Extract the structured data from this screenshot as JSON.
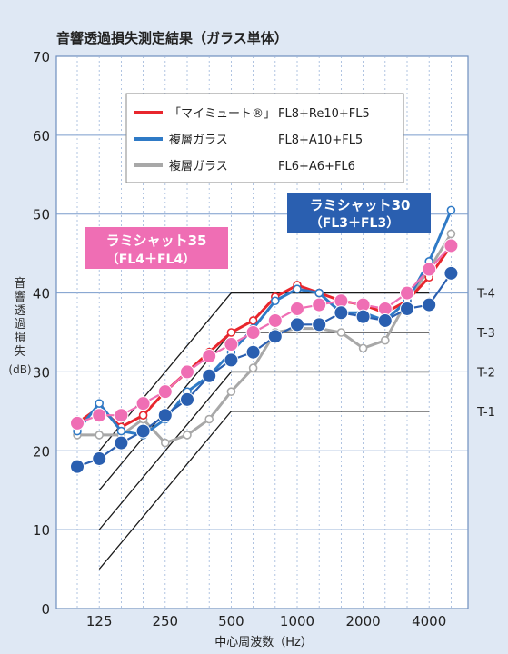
{
  "chart_data": {
    "type": "line",
    "title": "音響透過損失測定結果（ガラス単体）",
    "xlabel": "中心周波数（Hz）",
    "ylabel": "音響透過損失",
    "yunit": "(dB)",
    "ylim": [
      0,
      70
    ],
    "yticks": [
      0,
      10,
      20,
      30,
      40,
      50,
      60,
      70
    ],
    "x_scale": "log (1/3 octave bands)",
    "xticks": [
      "125",
      "250",
      "500",
      "1000",
      "2000",
      "4000"
    ],
    "x": [
      100,
      125,
      160,
      200,
      250,
      315,
      400,
      500,
      630,
      800,
      1000,
      1250,
      1600,
      2000,
      2500,
      3150,
      4000,
      5000
    ],
    "series": [
      {
        "name": "「マイミュート®」",
        "spec": "FL8+Re10+FL5",
        "color": "#e8262d",
        "marker": "small-open",
        "values": [
          23.5,
          25.5,
          23,
          24.5,
          27.5,
          30,
          32.5,
          35,
          36.5,
          39.5,
          41,
          40,
          39,
          38.5,
          37.5,
          39,
          42,
          46
        ]
      },
      {
        "name": "複層ガラス",
        "spec": "FL8+A10+FL5",
        "color": "#2f7ac6",
        "marker": "small-open",
        "values": [
          22.5,
          26,
          22.5,
          22,
          24,
          27.5,
          29.5,
          32.5,
          35.5,
          39,
          40.5,
          40,
          37.5,
          37.5,
          36.5,
          39,
          44,
          50.5
        ]
      },
      {
        "name": "複層ガラス",
        "spec": "FL6+A6+FL6",
        "color": "#a8a8a8",
        "marker": "small-open",
        "values": [
          22,
          22,
          22,
          24,
          21,
          22,
          24,
          27.5,
          30.5,
          35,
          35.5,
          35.5,
          35,
          33,
          34,
          39,
          43,
          47.5
        ]
      },
      {
        "name": "ラミシャット35",
        "spec": "（FL4＋FL4）",
        "color": "#ef6eb4",
        "marker": "large-filled",
        "values": [
          23.5,
          24.5,
          24.5,
          26,
          27.5,
          30,
          32,
          33.5,
          35,
          36.5,
          38,
          38.5,
          39,
          38.5,
          38,
          40,
          43,
          46
        ]
      },
      {
        "name": "ラミシャット30",
        "spec": "（FL3＋FL3）",
        "color": "#2a5fb0",
        "marker": "large-filled",
        "values": [
          18,
          19,
          21,
          22.5,
          24.5,
          26.5,
          29.5,
          31.5,
          32.5,
          34.5,
          36,
          36,
          37.5,
          37,
          36.5,
          38,
          38.5,
          42.5
        ]
      }
    ],
    "reference_lines": [
      {
        "label": "T-4",
        "y_at_125": 20,
        "plateau": 40
      },
      {
        "label": "T-3",
        "y_at_125": 15,
        "plateau": 35
      },
      {
        "label": "T-2",
        "y_at_125": 10,
        "plateau": 30
      },
      {
        "label": "T-1",
        "y_at_125": 5,
        "plateau": 25
      }
    ],
    "grid": true,
    "legend": {
      "position": "top-left inside",
      "entries": [
        "「マイミュート®」 FL8+Re10+FL5",
        "複層ガラス FL8+A10+FL5",
        "複層ガラス FL6+A6+FL6"
      ]
    },
    "callouts": [
      {
        "text": "ラミシャット35",
        "sub": "（FL4＋FL4）",
        "color": "#ef6eb4"
      },
      {
        "text": "ラミシャット30",
        "sub": "（FL3＋FL3）",
        "color": "#2a5fb0"
      }
    ]
  }
}
